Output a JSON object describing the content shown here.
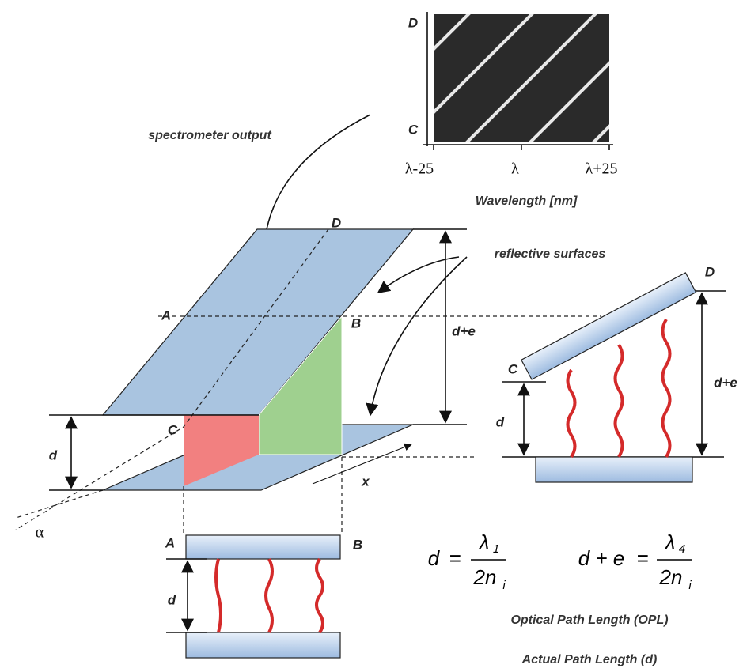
{
  "spectrometer_plot": {
    "y_labels": [
      "D",
      "C"
    ],
    "x_ticks": [
      "λ-25",
      "λ",
      "λ+25"
    ],
    "x_axis_label": "Wavelength [nm]",
    "annotation": "spectrometer output"
  },
  "wedge_view": {
    "corner_labels": [
      "A",
      "B",
      "C",
      "D"
    ],
    "gap_labels": [
      "d",
      "d+e"
    ],
    "shift_label": "x",
    "angle_label": "α",
    "annotation": "reflective surfaces"
  },
  "side_view": {
    "corner_labels": [
      "C",
      "D"
    ],
    "gap_labels": [
      "d",
      "d+e"
    ]
  },
  "front_view": {
    "corner_labels": [
      "A",
      "B"
    ],
    "gap_label": "d"
  },
  "equations": [
    {
      "lhs": "d",
      "operator": "=",
      "numerator": "λ",
      "numerator_subscript": "1",
      "denominator": "2n",
      "denominator_subscript": "i"
    },
    {
      "lhs": "d + e",
      "operator": "=",
      "numerator": "λ",
      "numerator_subscript": "4",
      "denominator": "2n",
      "denominator_subscript": "i"
    }
  ],
  "legend": [
    "Optical Path Length (OPL)",
    "Actual Path Length (d)"
  ]
}
